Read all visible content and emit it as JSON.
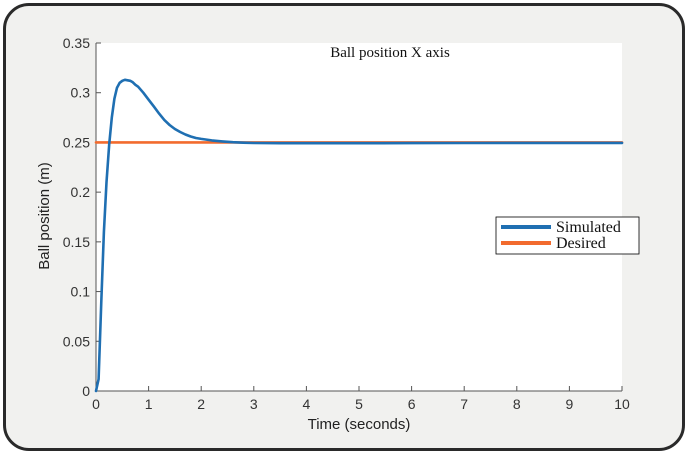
{
  "chart_data": {
    "type": "line",
    "title": "Ball position X axis",
    "xlabel": "Time (seconds)",
    "ylabel": "Ball position (m)",
    "xlim": [
      0,
      10
    ],
    "ylim": [
      0,
      0.35
    ],
    "xticks": [
      "0",
      "1",
      "2",
      "3",
      "4",
      "5",
      "6",
      "7",
      "8",
      "9",
      "10"
    ],
    "yticks": [
      "0",
      "0.05",
      "0.1",
      "0.15",
      "0.2",
      "0.25",
      "0.3",
      "0.35"
    ],
    "grid": false,
    "legend_position": "right",
    "series": [
      {
        "name": "Simulated",
        "color": "#1f6fb2",
        "x": [
          0,
          0.05,
          0.1,
          0.15,
          0.2,
          0.25,
          0.3,
          0.35,
          0.4,
          0.45,
          0.5,
          0.55,
          0.6,
          0.65,
          0.7,
          0.75,
          0.8,
          0.9,
          1.0,
          1.1,
          1.2,
          1.3,
          1.4,
          1.5,
          1.6,
          1.7,
          1.8,
          1.9,
          2.0,
          2.2,
          2.4,
          2.6,
          2.8,
          3.0,
          3.5,
          4.0,
          5.0,
          6.0,
          7.0,
          8.0,
          9.0,
          10.0
        ],
        "y": [
          0,
          0.012,
          0.09,
          0.16,
          0.21,
          0.248,
          0.275,
          0.294,
          0.305,
          0.31,
          0.312,
          0.313,
          0.3125,
          0.312,
          0.3105,
          0.308,
          0.306,
          0.3,
          0.293,
          0.286,
          0.279,
          0.2725,
          0.2675,
          0.2635,
          0.2605,
          0.258,
          0.256,
          0.2545,
          0.2535,
          0.252,
          0.251,
          0.2502,
          0.2497,
          0.2494,
          0.2492,
          0.2492,
          0.2492,
          0.2493,
          0.2494,
          0.2495,
          0.2495,
          0.2495
        ]
      },
      {
        "name": "Desired",
        "color": "#f26b2e",
        "x": [
          0,
          10
        ],
        "y": [
          0.25,
          0.25
        ]
      }
    ]
  }
}
